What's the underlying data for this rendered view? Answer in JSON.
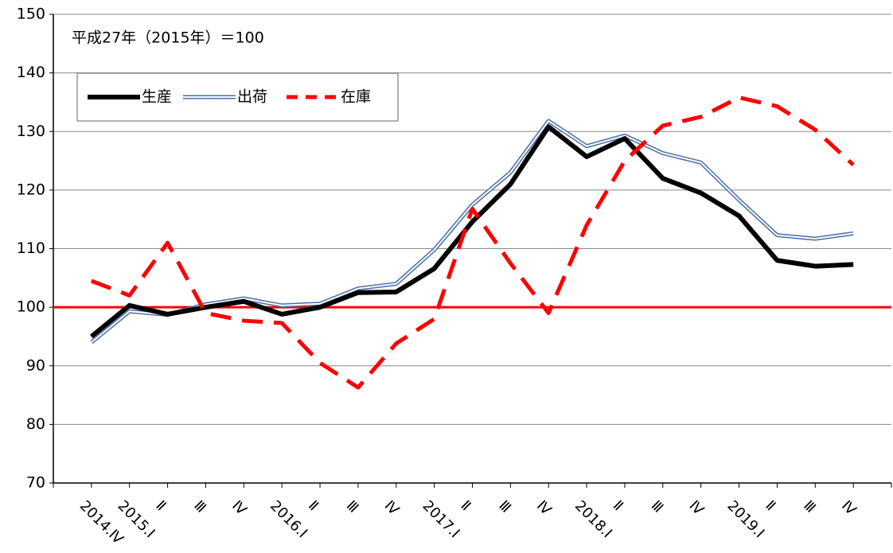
{
  "chart_data": {
    "type": "line",
    "annotation": "平成27年（2015年）＝100",
    "categories": [
      "2014.Ⅳ",
      "2015.Ⅰ",
      "Ⅱ",
      "Ⅲ",
      "Ⅳ",
      "2016.Ⅰ",
      "Ⅱ",
      "Ⅲ",
      "Ⅳ",
      "2017.Ⅰ",
      "Ⅱ",
      "Ⅲ",
      "Ⅳ",
      "2018.Ⅰ",
      "Ⅱ",
      "Ⅲ",
      "Ⅳ",
      "2019.Ⅰ",
      "Ⅱ",
      "Ⅲ",
      "Ⅳ"
    ],
    "series": [
      {
        "name": "生産",
        "color": "#000000",
        "style": "solid",
        "values": [
          95,
          100.3,
          98.8,
          100,
          101,
          98.8,
          100,
          102.5,
          102.6,
          106.6,
          114.6,
          121,
          130.8,
          125.7,
          128.8,
          122,
          119.5,
          115.6,
          108,
          107,
          107.3
        ]
      },
      {
        "name": "出荷",
        "color": "#4a6fa5",
        "style": "double",
        "values": [
          94,
          99.3,
          98.7,
          100.5,
          101.5,
          100.3,
          100.6,
          103.2,
          104,
          109.8,
          117.5,
          123,
          131.8,
          127.5,
          129.3,
          126.3,
          124.7,
          118.3,
          112.3,
          111.7,
          112.6
        ]
      },
      {
        "name": "在庫",
        "color": "#ff0000",
        "style": "dashed",
        "values": [
          104.5,
          102,
          111,
          99,
          97.7,
          97.3,
          90.5,
          86.3,
          93.8,
          98,
          116.8,
          107.5,
          99,
          114,
          125,
          131,
          132.5,
          135.8,
          134.3,
          130.3,
          124.3
        ]
      }
    ],
    "reference_line": {
      "value": 100,
      "color": "#ff0000"
    },
    "ylim": [
      70,
      150
    ],
    "yticks": [
      70,
      80,
      90,
      100,
      110,
      120,
      130,
      140,
      150
    ],
    "grid": true
  }
}
